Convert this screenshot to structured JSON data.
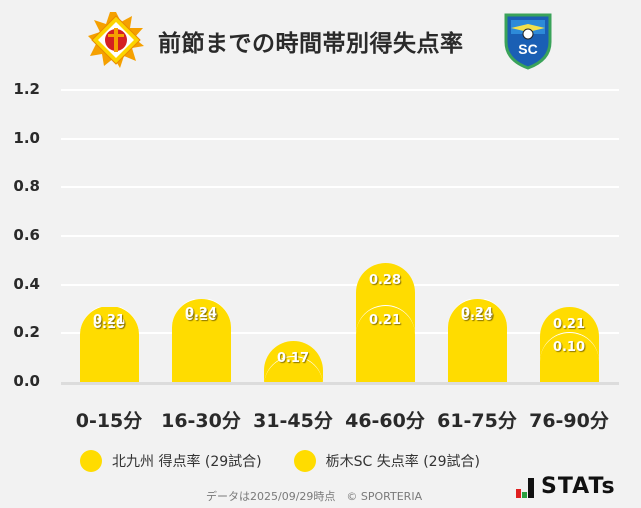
{
  "header": {
    "title": "前節までの時間帯別得失点率",
    "left_logo": "giravanz-kitakyushu-crest",
    "right_logo": "tochigi-sc-crest"
  },
  "colors": {
    "series": "#ffdc00",
    "background": "#f2f2f2",
    "grid": "#ffffff",
    "text": "#2a2a2a"
  },
  "chart_data": {
    "type": "bar",
    "stacked": true,
    "title": "前節までの時間帯別得失点率",
    "xlabel": "",
    "ylabel": "",
    "ylim": [
      0,
      1.2
    ],
    "yticks": [
      "0.0",
      "0.2",
      "0.4",
      "0.6",
      "0.8",
      "1.0",
      "1.2"
    ],
    "grid": true,
    "legend_position": "bottom",
    "categories": [
      "0-15分",
      "16-30分",
      "31-45分",
      "46-60分",
      "61-75分",
      "76-90分"
    ],
    "series": [
      {
        "name": "北九州 得点率 (29試合)",
        "position": "bottom",
        "values": [
          0.21,
          0.24,
          0.0,
          0.21,
          0.24,
          0.1
        ],
        "labels": [
          "0.21",
          "0.24",
          "",
          "0.21",
          "0.24",
          "0.10"
        ]
      },
      {
        "name": "栃木SC 失点率 (29試合)",
        "position": "top",
        "values": [
          0.1,
          0.1,
          0.17,
          0.28,
          0.1,
          0.21
        ],
        "labels": [
          "0.10",
          "0.10",
          "0.17",
          "0.28",
          "0.10",
          "0.21"
        ]
      }
    ]
  },
  "legend": {
    "items": [
      {
        "label": "北九州 得点率 (29試合)"
      },
      {
        "label": "栃木SC 失点率 (29試合)"
      }
    ]
  },
  "footer": {
    "note": "データは2025/09/29時点　© SPORTERIA",
    "brand": "STATs"
  }
}
